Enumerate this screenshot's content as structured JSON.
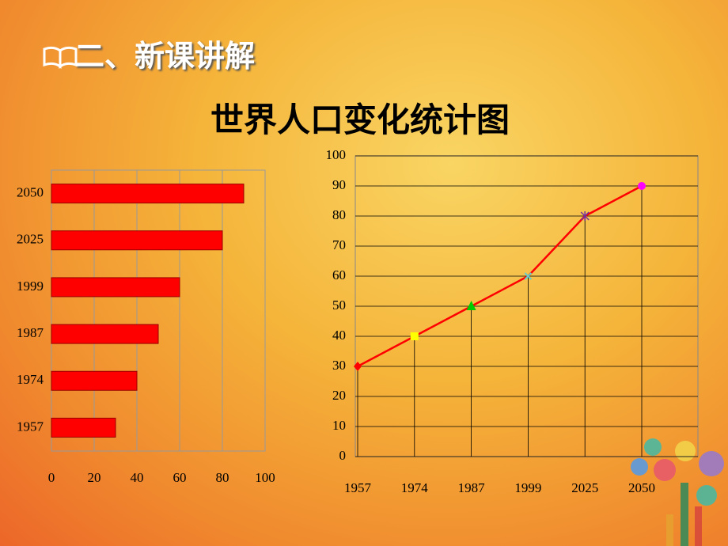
{
  "header": {
    "section": "二、新课讲解",
    "title": "世界人口变化统计图"
  },
  "chart_data": [
    {
      "type": "hbar",
      "categories": [
        "1957",
        "1974",
        "1987",
        "1999",
        "2025",
        "2050"
      ],
      "values": [
        30,
        40,
        50,
        60,
        80,
        90
      ],
      "color": "#ff0000",
      "xlim": [
        0,
        100
      ],
      "xticks": [
        0,
        20,
        40,
        60,
        80,
        100
      ],
      "grid": true
    },
    {
      "type": "line",
      "categories": [
        "1957",
        "1974",
        "1987",
        "1999",
        "2025",
        "2050"
      ],
      "values": [
        30,
        40,
        50,
        60,
        80,
        90
      ],
      "color": "#ff0000",
      "markers": [
        "diamond",
        "square",
        "triangle",
        "x",
        "star",
        "circle"
      ],
      "marker_colors": [
        "#ff0000",
        "#ffff00",
        "#00cc00",
        "#66cccc",
        "#7030a0",
        "#ff00ff"
      ],
      "ylim": [
        0,
        100
      ],
      "yticks": [
        0,
        10,
        20,
        30,
        40,
        50,
        60,
        70,
        80,
        90,
        100
      ],
      "grid": true
    }
  ]
}
